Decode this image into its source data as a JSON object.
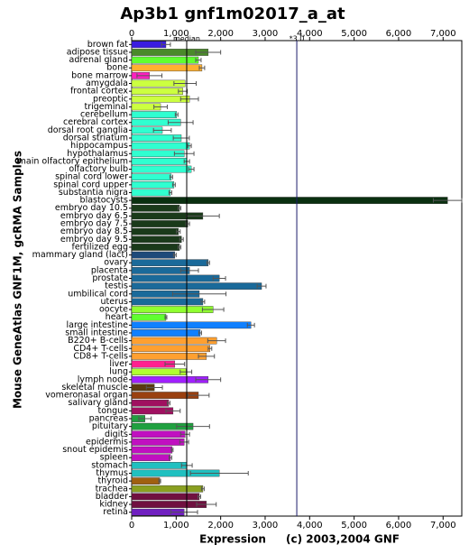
{
  "chart_data": {
    "type": "hbar",
    "title": "Ap3b1 gnf1m02017_a_at",
    "ylabel": "Mouse GeneAtlas GNF1M, gcRMA Samples",
    "xlabel": "Expression",
    "copyright": "(c) 2003,2004 GNF",
    "median": {
      "value": 1237,
      "label": "median"
    },
    "threshold": {
      "value": 3711,
      "label": "*3.0"
    },
    "xlim": [
      0,
      7420
    ],
    "xticks": [
      0,
      {
        "value": 1000,
        "label": "1,000"
      },
      {
        "value": 2000,
        "label": "2,000"
      },
      {
        "value": 3000,
        "label": "3,000"
      },
      {
        "value": 4000,
        "label": "4,000"
      },
      {
        "value": 5000,
        "label": "5,000"
      },
      {
        "value": 6000,
        "label": "6,000"
      },
      {
        "value": 7000,
        "label": "7,000"
      }
    ],
    "categories": [
      "brown fat",
      "adipose tissue",
      "adrenal gland",
      "bone",
      "bone marrow",
      "amygdala",
      "frontal cortex",
      "preoptic",
      "trigeminal",
      "cerebellum",
      "cerebral cortex",
      "dorsal root ganglia",
      "dorsal striatum",
      "hippocampus",
      "hypothalamus",
      "main olfactory epithelium",
      "olfactory bulb",
      "spinal cord lower",
      "spinal cord upper",
      "substantia nigra",
      "blastocysts",
      "embryo day 10.5",
      "embryo day 6.5",
      "embryo day 7.5",
      "embryo day 8.5",
      "embryo day 9.5",
      "fertilized egg",
      "mammary gland (lact)",
      "ovary",
      "placenta",
      "prostate",
      "testis",
      "umbilical cord",
      "uterus",
      "oocyte",
      "heart",
      "large intestine",
      "small intestine",
      "B220+ B-cells",
      "CD4+ T-cells",
      "CD8+ T-cells",
      "liver",
      "lung",
      "lymph node",
      "skeletal muscle",
      "vomeronasal organ",
      "salivary gland",
      "tongue",
      "pancreas",
      "pituitary",
      "digits",
      "epidermis",
      "snout epidemis",
      "spleen",
      "stomach",
      "thymus",
      "thyroid",
      "trachea",
      "bladder",
      "kidney",
      "retina"
    ],
    "values": [
      770,
      1720,
      1500,
      1580,
      400,
      1200,
      1150,
      1300,
      650,
      1010,
      1100,
      690,
      1115,
      1300,
      1180,
      1240,
      1340,
      890,
      950,
      870,
      7100,
      1075,
      1600,
      1260,
      1050,
      1120,
      1075,
      970,
      1720,
      1300,
      1970,
      2920,
      1520,
      1600,
      1830,
      770,
      2680,
      1540,
      1910,
      1760,
      1680,
      970,
      1220,
      1720,
      510,
      1500,
      830,
      930,
      300,
      1380,
      1200,
      1180,
      910,
      870,
      1240,
      1970,
      630,
      1600,
      1520,
      1680,
      1180
    ],
    "errors": [
      100,
      280,
      60,
      60,
      280,
      250,
      100,
      200,
      150,
      30,
      280,
      200,
      180,
      40,
      220,
      60,
      60,
      30,
      30,
      30,
      320,
      30,
      370,
      40,
      40,
      40,
      30,
      30,
      30,
      200,
      140,
      100,
      600,
      40,
      240,
      20,
      80,
      30,
      200,
      40,
      180,
      220,
      130,
      280,
      180,
      240,
      30,
      160,
      140,
      370,
      100,
      100,
      20,
      30,
      120,
      650,
      20,
      30,
      30,
      220,
      300
    ],
    "colors": [
      "#3a1de0",
      "#4a8a2a",
      "#60ff30",
      "#ffb030",
      "#ff20c0",
      "#ccff40",
      "#ccff40",
      "#ccff40",
      "#ccff40",
      "#30ffd0",
      "#30ffd0",
      "#30ffd0",
      "#30ffd0",
      "#30ffd0",
      "#30ffd0",
      "#30ffd0",
      "#30ffd0",
      "#30ffd0",
      "#30ffd0",
      "#30ffd0",
      "#0a3010",
      "#1a3a1a",
      "#1a3a1a",
      "#1a3a1a",
      "#1a3a1a",
      "#1a3a1a",
      "#1a3a1a",
      "#1e4a7a",
      "#1a6a9a",
      "#1a6a9a",
      "#1a6a9a",
      "#1a6a9a",
      "#1a6a9a",
      "#1a6a9a",
      "#90ff30",
      "#60ff30",
      "#1080ff",
      "#1080ff",
      "#ffa030",
      "#ffa030",
      "#ffa030",
      "#ff2090",
      "#b0ff30",
      "#a020ff",
      "#5a3a10",
      "#9a4010",
      "#a01060",
      "#a01060",
      "#20a040",
      "#20a040",
      "#c010c0",
      "#c010c0",
      "#c010c0",
      "#c010c0",
      "#20c0c0",
      "#20c0c0",
      "#a06010",
      "#8aa020",
      "#701040",
      "#701040",
      "#7020c0"
    ]
  }
}
